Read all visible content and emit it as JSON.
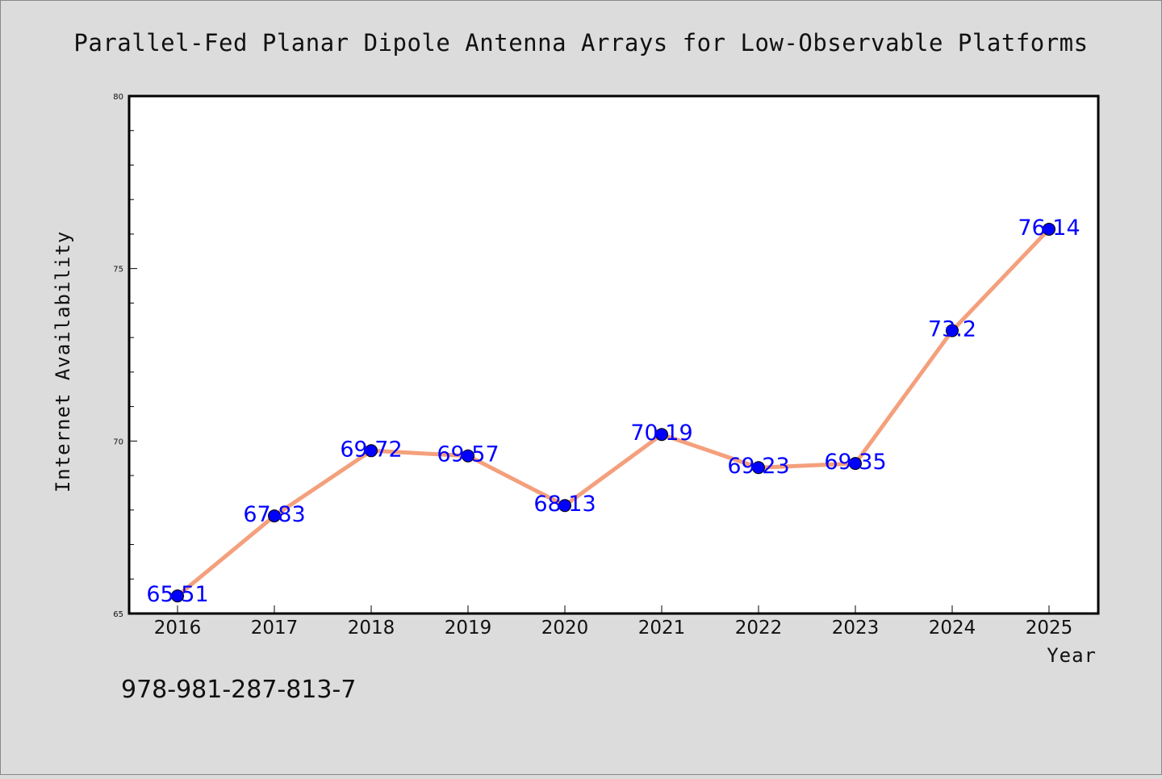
{
  "chart_data": {
    "type": "line",
    "title": "Parallel-Fed Planar Dipole Antenna Arrays for Low-Observable Platforms",
    "xlabel": "Year",
    "ylabel": "Internet Availability",
    "categories": [
      "2016",
      "2017",
      "2018",
      "2019",
      "2020",
      "2021",
      "2022",
      "2023",
      "2024",
      "2025"
    ],
    "values": [
      65.51,
      67.83,
      69.72,
      69.57,
      68.13,
      70.19,
      69.23,
      69.35,
      73.2,
      76.14
    ],
    "data_labels": [
      "65.51",
      "67.83",
      "69.72",
      "69.57",
      "68.13",
      "70.19",
      "69.23",
      "69.35",
      "73.2",
      "76.14"
    ],
    "ylim": [
      65,
      80
    ],
    "yticks": [
      "65",
      "70",
      "75",
      "80"
    ],
    "grid": false,
    "legend": "none",
    "line_color": "#f4a07c",
    "marker_color": "#0000ff",
    "label_color": "#0000ff",
    "background": "#dcdcdc",
    "plot_background": "#ffffff"
  },
  "footer": {
    "isbn": "978-981-287-813-7"
  }
}
